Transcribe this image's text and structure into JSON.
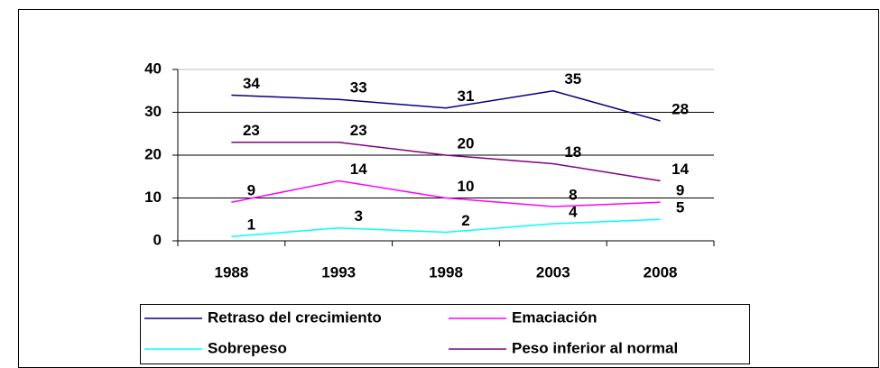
{
  "chart_data": {
    "type": "line",
    "categories": [
      "1988",
      "1993",
      "1998",
      "2003",
      "2008"
    ],
    "series": [
      {
        "name": "Retraso del crecimiento",
        "color": "#000080",
        "values": [
          34,
          33,
          31,
          35,
          28
        ]
      },
      {
        "name": "Emaciación",
        "color": "#ff00ff",
        "values": [
          9,
          14,
          10,
          8,
          9
        ]
      },
      {
        "name": "Sobrepeso",
        "color": "#00ffff",
        "values": [
          1,
          3,
          2,
          4,
          5
        ]
      },
      {
        "name": "Peso inferior al normal",
        "color": "#800080",
        "values": [
          23,
          23,
          20,
          18,
          14
        ]
      }
    ],
    "ylim": [
      0,
      40
    ],
    "yticks": [
      0,
      10,
      20,
      30,
      40
    ],
    "grid": true,
    "legend": "bottom"
  }
}
